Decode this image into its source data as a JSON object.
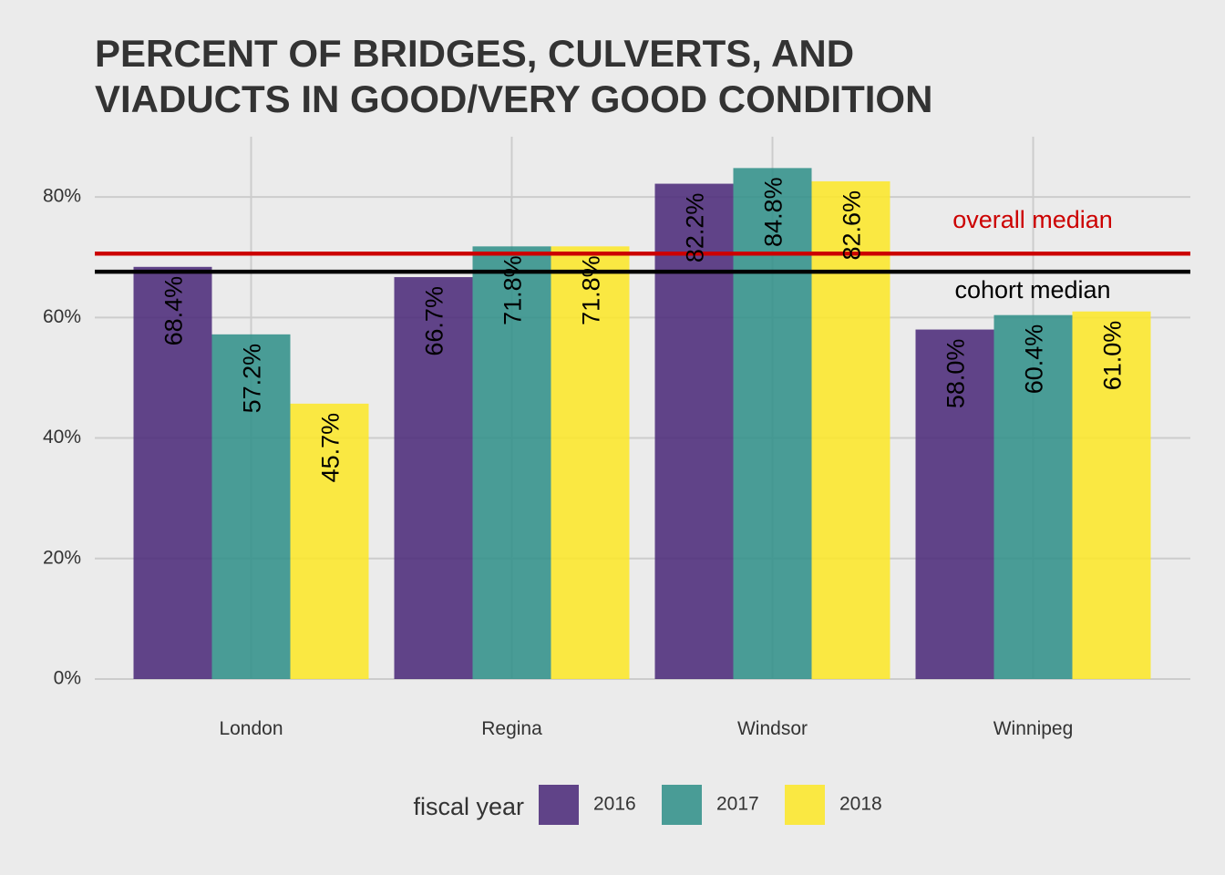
{
  "chart_data": {
    "type": "bar",
    "title_lines": [
      "PERCENT OF BRIDGES, CULVERTS, AND",
      "VIADUCTS IN GOOD/VERY GOOD CONDITION"
    ],
    "xlabel": "",
    "ylabel": "",
    "categories": [
      "London",
      "Regina",
      "Windsor",
      "Winnipeg"
    ],
    "series": [
      {
        "name": "2016",
        "color": "#482677",
        "values": [
          68.4,
          66.7,
          82.2,
          58.0
        ],
        "labels": [
          "68.4%",
          "66.7%",
          "82.2%",
          "58.0%"
        ]
      },
      {
        "name": "2017",
        "color": "#2d8e87",
        "values": [
          57.2,
          71.8,
          84.8,
          60.4
        ],
        "labels": [
          "57.2%",
          "71.8%",
          "84.8%",
          "60.4%"
        ]
      },
      {
        "name": "2018",
        "color": "#fde725",
        "values": [
          45.7,
          71.8,
          82.6,
          61.0
        ],
        "labels": [
          "45.7%",
          "71.8%",
          "82.6%",
          "61.0%"
        ]
      }
    ],
    "bar_opacity": 0.85,
    "ylim": [
      0,
      90
    ],
    "y_ticks": [
      0,
      20,
      40,
      60,
      80
    ],
    "y_tick_labels": [
      "0%",
      "20%",
      "40%",
      "60%",
      "80%"
    ],
    "grid": true,
    "reference_lines": [
      {
        "label": "overall median",
        "value": 70.6,
        "color": "#cc0000"
      },
      {
        "label": "cohort median",
        "value": 67.6,
        "color": "#000000"
      }
    ],
    "legend": {
      "title": "fiscal year",
      "position": "bottom",
      "entries": [
        "2016",
        "2017",
        "2018"
      ]
    }
  }
}
